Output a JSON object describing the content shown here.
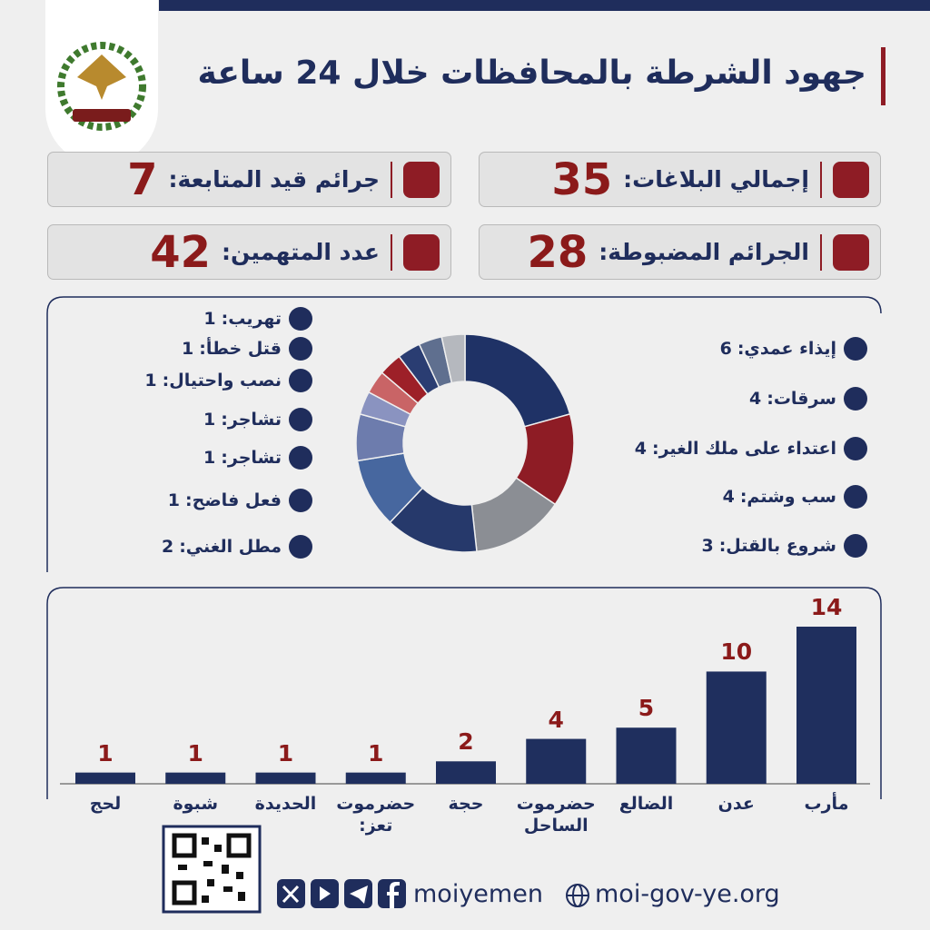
{
  "header": {
    "title": "جهود الشرطة بالمحافظات خلال 24 ساعة"
  },
  "stats": [
    {
      "label": "إجمالي البلاغات:",
      "value": 35
    },
    {
      "label": "جرائم قيد المتابعة:",
      "value": 7
    },
    {
      "label": "الجرائم المضبوطة:",
      "value": 28
    },
    {
      "label": "عدد المتهمين:",
      "value": 42
    }
  ],
  "chart_data": [
    {
      "type": "pie",
      "categories": [
        "إيذاء عمدي:",
        "سرقات:",
        "اعتداء على ملك الغير:",
        "سب وشتم:",
        "شروع بالقتل:",
        "مطل الغني:",
        "فعل فاضح:",
        "تشاجر:",
        "تشاجر:",
        "نصب واحتيال:",
        "قتل خطأ:",
        "تهريب:"
      ],
      "values": [
        6,
        4,
        4,
        4,
        3,
        2,
        1,
        1,
        1,
        1,
        1,
        1
      ],
      "colors": [
        "#1f3266",
        "#8e1c25",
        "#8b8e94",
        "#26396b",
        "#47679f",
        "#6d7cad",
        "#8a93c0",
        "#c96466",
        "#9d2028",
        "#2a3d72",
        "#5f6f8f",
        "#b5b8be"
      ]
    },
    {
      "type": "bar",
      "categories": [
        "مأرب",
        "عدن",
        "الضالع",
        "حضرموت الساحل",
        "حجة",
        "حضرموت تعز:",
        "الحديدة",
        "شبوة",
        "لحج"
      ],
      "values": [
        14,
        10,
        5,
        4,
        2,
        1,
        1,
        1,
        1
      ],
      "color": "#1f2f5e",
      "ylim": [
        0,
        14
      ]
    }
  ],
  "footer": {
    "handle": "moiyemen",
    "website": "moi-gov-ye.org"
  }
}
